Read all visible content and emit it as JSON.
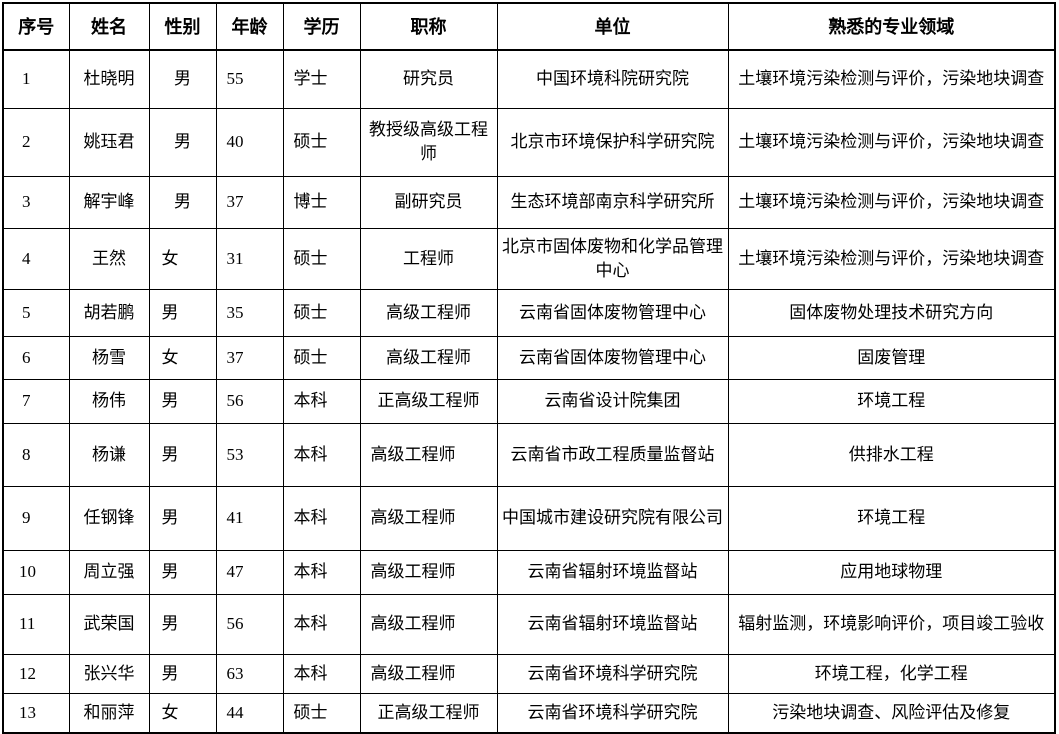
{
  "headers": [
    "序号",
    "姓名",
    "性别",
    "年龄",
    "学历",
    "职称",
    "单位",
    "熟悉的专业领域"
  ],
  "rows": [
    {
      "seq": "1",
      "name": "杜晓明",
      "gender": "男",
      "age": "55",
      "degree": "学士",
      "title": "研究员",
      "unit": "中国环境科院研究院",
      "field": "土壤环境污染检测与评价，污染地块调查"
    },
    {
      "seq": "2",
      "name": "姚珏君",
      "gender": "男",
      "age": "40",
      "degree": "硕士",
      "title": "教授级高级工程师",
      "unit": "北京市环境保护科学研究院",
      "field": "土壤环境污染检测与评价，污染地块调查"
    },
    {
      "seq": "3",
      "name": "解宇峰",
      "gender": "男",
      "age": "37",
      "degree": "博士",
      "title": "副研究员",
      "unit": "生态环境部南京科学研究所",
      "field": "土壤环境污染检测与评价，污染地块调查"
    },
    {
      "seq": "4",
      "name": "王然",
      "gender": "女",
      "age": "31",
      "degree": "硕士",
      "title": "工程师",
      "unit": "北京市固体废物和化学品管理中心",
      "field": "土壤环境污染检测与评价，污染地块调查"
    },
    {
      "seq": "5",
      "name": "胡若鹏",
      "gender": "男",
      "age": "35",
      "degree": "硕士",
      "title": "高级工程师",
      "unit": "云南省固体废物管理中心",
      "field": "固体废物处理技术研究方向"
    },
    {
      "seq": "6",
      "name": "杨雪",
      "gender": "女",
      "age": "37",
      "degree": "硕士",
      "title": "高级工程师",
      "unit": "云南省固体废物管理中心",
      "field": "固废管理"
    },
    {
      "seq": "7",
      "name": "杨伟",
      "gender": "男",
      "age": "56",
      "degree": "本科",
      "title": "正高级工程师",
      "unit": "云南省设计院集团",
      "field": "环境工程"
    },
    {
      "seq": "8",
      "name": "杨谦",
      "gender": "男",
      "age": "53",
      "degree": "本科",
      "title": "高级工程师",
      "unit": "云南省市政工程质量监督站",
      "field": "供排水工程"
    },
    {
      "seq": "9",
      "name": "任钢锋",
      "gender": "男",
      "age": "41",
      "degree": "本科",
      "title": "高级工程师",
      "unit": "中国城市建设研究院有限公司",
      "field": "环境工程"
    },
    {
      "seq": "10",
      "name": "周立强",
      "gender": "男",
      "age": "47",
      "degree": "本科",
      "title": "高级工程师",
      "unit": "云南省辐射环境监督站",
      "field": "应用地球物理"
    },
    {
      "seq": "11",
      "name": "武荣国",
      "gender": "男",
      "age": "56",
      "degree": "本科",
      "title": "高级工程师",
      "unit": "云南省辐射环境监督站",
      "field": "辐射监测，环境影响评价，项目竣工验收"
    },
    {
      "seq": "12",
      "name": "张兴华",
      "gender": "男",
      "age": "63",
      "degree": "本科",
      "title": "高级工程师",
      "unit": "云南省环境科学研究院",
      "field": "环境工程，化学工程"
    },
    {
      "seq": "13",
      "name": "和丽萍",
      "gender": "女",
      "age": "44",
      "degree": "硕士",
      "title": "正高级工程师",
      "unit": "云南省环境科学研究院",
      "field": "污染地块调查、风险评估及修复"
    }
  ]
}
